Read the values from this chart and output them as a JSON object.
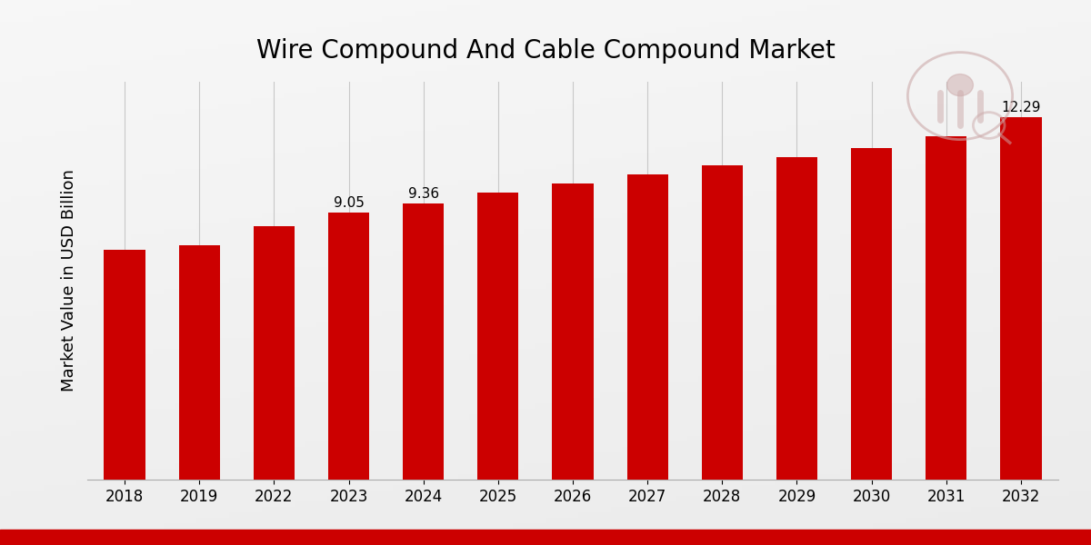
{
  "title": "Wire Compound And Cable Compound Market",
  "ylabel": "Market Value in USD Billion",
  "categories": [
    "2018",
    "2019",
    "2022",
    "2023",
    "2024",
    "2025",
    "2026",
    "2027",
    "2028",
    "2029",
    "2030",
    "2031",
    "2032"
  ],
  "values": [
    7.8,
    7.95,
    8.6,
    9.05,
    9.36,
    9.75,
    10.05,
    10.35,
    10.65,
    10.95,
    11.25,
    11.65,
    12.29
  ],
  "bar_color": "#CC0000",
  "label_values": {
    "2023": "9.05",
    "2024": "9.36",
    "2032": "12.29"
  },
  "ylim": [
    0,
    13.5
  ],
  "bg_color_top": "#F5F5F5",
  "bg_color_bottom": "#E0E0E0",
  "grid_color": "#C8C8C8",
  "title_fontsize": 20,
  "axis_label_fontsize": 13,
  "tick_fontsize": 12,
  "bottom_bar_color": "#CC0000",
  "bottom_bar_height": 0.03
}
